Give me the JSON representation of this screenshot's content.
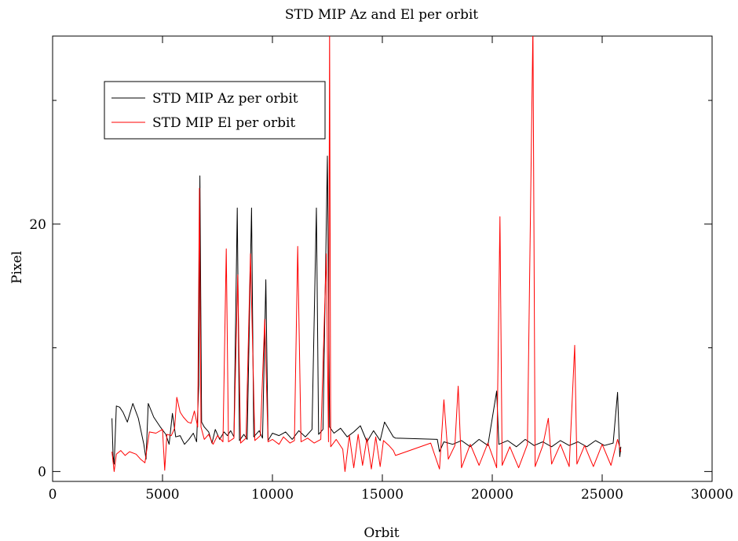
{
  "chart_data": {
    "type": "line",
    "title": "STD MIP Az and El per orbit",
    "xlabel": "Orbit",
    "ylabel": "Pixel",
    "xlim": [
      0,
      30000
    ],
    "ylim": [
      -0.8,
      35.2
    ],
    "x_ticks": [
      0,
      5000,
      10000,
      15000,
      20000,
      25000,
      30000
    ],
    "x_tick_labels": [
      "0",
      "5000",
      "10000",
      "15000",
      "20000",
      "25000",
      "30000"
    ],
    "y_ticks": [
      0,
      20
    ],
    "y_tick_labels": [
      "0",
      "20"
    ],
    "y_minor_ticks": [
      10,
      30
    ],
    "grid": false,
    "legend_position": "top-left",
    "series": [
      {
        "name": "STD MIP Az per orbit",
        "color": "#000000",
        "points": [
          [
            2700,
            4.3
          ],
          [
            2750,
            1.3
          ],
          [
            2800,
            0.6
          ],
          [
            2900,
            5.3
          ],
          [
            3050,
            5.2
          ],
          [
            3200,
            4.8
          ],
          [
            3400,
            4.0
          ],
          [
            3650,
            5.5
          ],
          [
            3900,
            4.3
          ],
          [
            4150,
            2.2
          ],
          [
            4250,
            1.0
          ],
          [
            4350,
            5.5
          ],
          [
            4600,
            4.4
          ],
          [
            4900,
            3.6
          ],
          [
            5150,
            3.0
          ],
          [
            5300,
            2.2
          ],
          [
            5450,
            4.7
          ],
          [
            5600,
            2.8
          ],
          [
            5800,
            2.9
          ],
          [
            6000,
            2.2
          ],
          [
            6200,
            2.6
          ],
          [
            6400,
            3.1
          ],
          [
            6550,
            2.4
          ],
          [
            6650,
            7.0
          ],
          [
            6700,
            23.9
          ],
          [
            6780,
            4.0
          ],
          [
            6900,
            3.6
          ],
          [
            7100,
            3.2
          ],
          [
            7250,
            2.3
          ],
          [
            7400,
            3.4
          ],
          [
            7600,
            2.6
          ],
          [
            7800,
            3.2
          ],
          [
            7950,
            2.9
          ],
          [
            8100,
            3.3
          ],
          [
            8250,
            2.8
          ],
          [
            8400,
            21.3
          ],
          [
            8500,
            2.5
          ],
          [
            8700,
            3.0
          ],
          [
            8850,
            2.6
          ],
          [
            9050,
            21.3
          ],
          [
            9150,
            2.8
          ],
          [
            9400,
            3.3
          ],
          [
            9550,
            2.7
          ],
          [
            9700,
            15.5
          ],
          [
            9800,
            2.5
          ],
          [
            10000,
            3.1
          ],
          [
            10300,
            2.9
          ],
          [
            10600,
            3.2
          ],
          [
            10900,
            2.6
          ],
          [
            11200,
            3.3
          ],
          [
            11500,
            2.8
          ],
          [
            11800,
            3.4
          ],
          [
            12000,
            21.3
          ],
          [
            12100,
            3.0
          ],
          [
            12300,
            3.4
          ],
          [
            12500,
            25.5
          ],
          [
            12600,
            3.6
          ],
          [
            12800,
            3.1
          ],
          [
            13100,
            3.5
          ],
          [
            13400,
            2.8
          ],
          [
            13700,
            3.2
          ],
          [
            14000,
            3.7
          ],
          [
            14300,
            2.4
          ],
          [
            14600,
            3.3
          ],
          [
            14900,
            2.5
          ],
          [
            15100,
            4.0
          ],
          [
            15500,
            2.8
          ],
          [
            15600,
            2.7
          ],
          [
            17500,
            2.6
          ],
          [
            17600,
            1.6
          ],
          [
            17800,
            2.4
          ],
          [
            18200,
            2.2
          ],
          [
            18600,
            2.5
          ],
          [
            19000,
            2.0
          ],
          [
            19400,
            2.6
          ],
          [
            19800,
            2.1
          ],
          [
            20200,
            6.5
          ],
          [
            20300,
            2.2
          ],
          [
            20700,
            2.5
          ],
          [
            21100,
            2.0
          ],
          [
            21500,
            2.6
          ],
          [
            21900,
            2.1
          ],
          [
            22300,
            2.4
          ],
          [
            22700,
            2.0
          ],
          [
            23100,
            2.5
          ],
          [
            23500,
            2.1
          ],
          [
            23900,
            2.4
          ],
          [
            24300,
            2.0
          ],
          [
            24700,
            2.5
          ],
          [
            25100,
            2.1
          ],
          [
            25500,
            2.3
          ],
          [
            25700,
            6.4
          ],
          [
            25800,
            1.2
          ],
          [
            25850,
            2.0
          ]
        ]
      },
      {
        "name": "STD MIP El per orbit",
        "color": "#ff0000",
        "points": [
          [
            2700,
            1.6
          ],
          [
            2800,
            0.0
          ],
          [
            2900,
            1.4
          ],
          [
            3100,
            1.7
          ],
          [
            3300,
            1.3
          ],
          [
            3500,
            1.6
          ],
          [
            3800,
            1.4
          ],
          [
            4000,
            1.0
          ],
          [
            4200,
            0.7
          ],
          [
            4400,
            3.2
          ],
          [
            4700,
            3.1
          ],
          [
            5000,
            3.4
          ],
          [
            5100,
            0.1
          ],
          [
            5200,
            3.0
          ],
          [
            5400,
            2.9
          ],
          [
            5550,
            3.5
          ],
          [
            5650,
            6.0
          ],
          [
            5800,
            4.8
          ],
          [
            5950,
            4.4
          ],
          [
            6150,
            4.0
          ],
          [
            6300,
            3.9
          ],
          [
            6450,
            4.9
          ],
          [
            6600,
            3.6
          ],
          [
            6680,
            22.9
          ],
          [
            6750,
            3.6
          ],
          [
            6900,
            2.6
          ],
          [
            7100,
            3.0
          ],
          [
            7300,
            2.2
          ],
          [
            7500,
            2.9
          ],
          [
            7750,
            2.4
          ],
          [
            7900,
            18.0
          ],
          [
            8000,
            2.4
          ],
          [
            8250,
            2.7
          ],
          [
            8420,
            15.9
          ],
          [
            8550,
            2.3
          ],
          [
            8800,
            2.7
          ],
          [
            9000,
            17.6
          ],
          [
            9200,
            2.5
          ],
          [
            9450,
            2.9
          ],
          [
            9650,
            12.3
          ],
          [
            9800,
            2.4
          ],
          [
            10000,
            2.6
          ],
          [
            10300,
            2.2
          ],
          [
            10500,
            2.8
          ],
          [
            10800,
            2.3
          ],
          [
            11000,
            2.5
          ],
          [
            11150,
            18.2
          ],
          [
            11300,
            2.4
          ],
          [
            11600,
            2.7
          ],
          [
            11900,
            2.3
          ],
          [
            12200,
            2.6
          ],
          [
            12450,
            17.6
          ],
          [
            12550,
            2.4
          ],
          [
            12600,
            36.0
          ],
          [
            12650,
            2.0
          ],
          [
            12900,
            2.6
          ],
          [
            13200,
            1.8
          ],
          [
            13300,
            0.0
          ],
          [
            13500,
            2.9
          ],
          [
            13700,
            0.3
          ],
          [
            13900,
            3.0
          ],
          [
            14100,
            0.5
          ],
          [
            14300,
            2.7
          ],
          [
            14500,
            0.2
          ],
          [
            14700,
            2.8
          ],
          [
            14900,
            0.4
          ],
          [
            15050,
            2.5
          ],
          [
            15300,
            2.1
          ],
          [
            15500,
            1.7
          ],
          [
            15600,
            1.3
          ],
          [
            17200,
            2.3
          ],
          [
            17600,
            0.2
          ],
          [
            17800,
            5.8
          ],
          [
            18000,
            1.0
          ],
          [
            18300,
            2.1
          ],
          [
            18450,
            6.9
          ],
          [
            18600,
            0.3
          ],
          [
            19000,
            2.2
          ],
          [
            19400,
            0.5
          ],
          [
            19800,
            2.3
          ],
          [
            20200,
            0.3
          ],
          [
            20350,
            20.6
          ],
          [
            20450,
            0.5
          ],
          [
            20800,
            2.0
          ],
          [
            21200,
            0.3
          ],
          [
            21600,
            2.2
          ],
          [
            21850,
            36.0
          ],
          [
            21950,
            0.4
          ],
          [
            22300,
            2.1
          ],
          [
            22550,
            4.3
          ],
          [
            22700,
            0.6
          ],
          [
            23100,
            2.2
          ],
          [
            23500,
            0.4
          ],
          [
            23750,
            10.2
          ],
          [
            23850,
            0.6
          ],
          [
            24200,
            2.1
          ],
          [
            24600,
            0.4
          ],
          [
            25000,
            2.2
          ],
          [
            25400,
            0.5
          ],
          [
            25700,
            2.6
          ],
          [
            25850,
            1.6
          ]
        ]
      }
    ]
  }
}
